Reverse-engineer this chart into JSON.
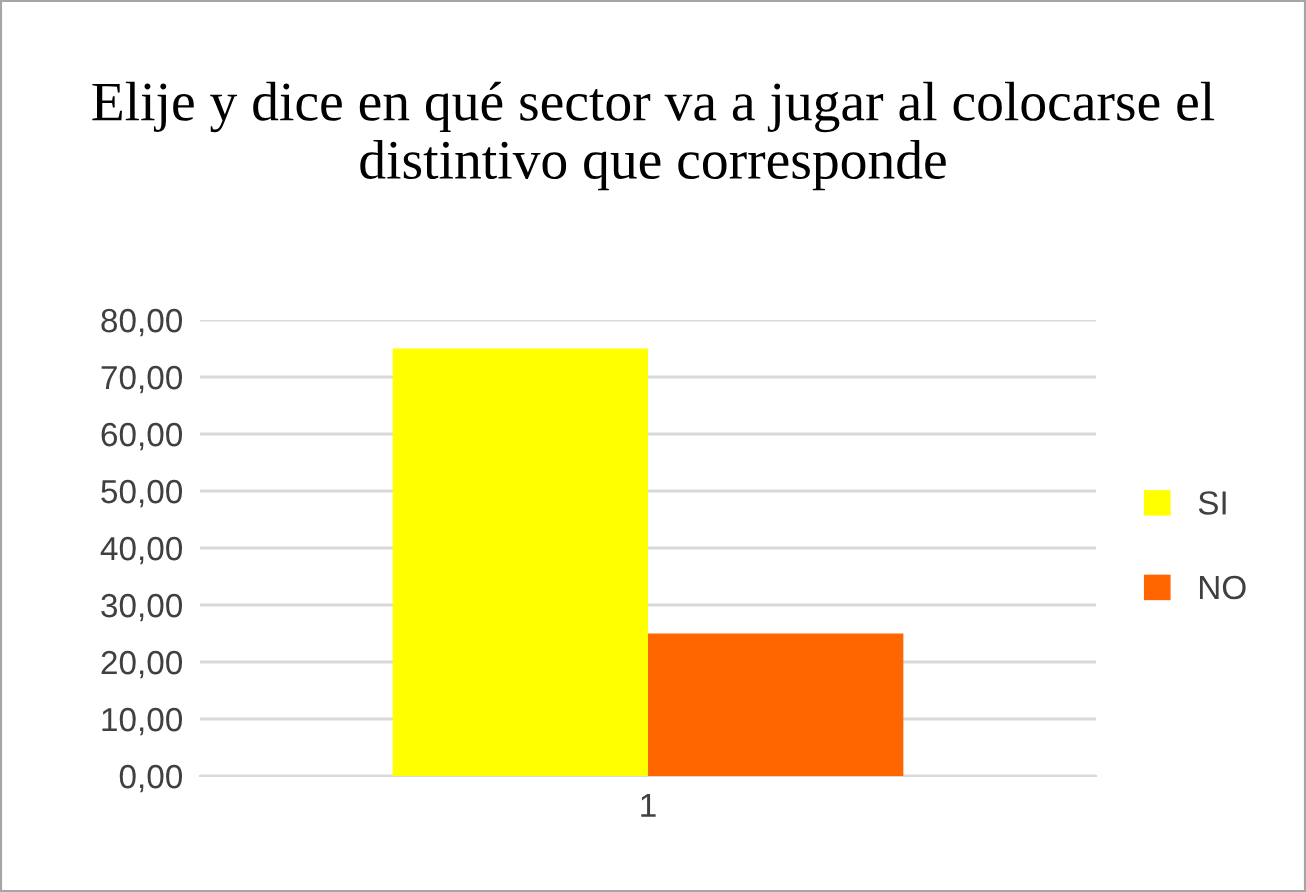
{
  "chart_data": {
    "type": "bar",
    "title": "Elije y dice en qué sector va a jugar al colocarse el distintivo que corresponde",
    "categories": [
      "1"
    ],
    "series": [
      {
        "name": "SI",
        "color": "#ffff00",
        "values": [
          75
        ]
      },
      {
        "name": "NO",
        "color": "#ff6600",
        "values": [
          25
        ]
      }
    ],
    "ylim": [
      0,
      80
    ],
    "yticks": [
      {
        "value": 0,
        "label": "0,00"
      },
      {
        "value": 10,
        "label": "10,00"
      },
      {
        "value": 20,
        "label": "20,00"
      },
      {
        "value": 30,
        "label": "30,00"
      },
      {
        "value": 40,
        "label": "40,00"
      },
      {
        "value": 50,
        "label": "50,00"
      },
      {
        "value": 60,
        "label": "60,00"
      },
      {
        "value": 70,
        "label": "70,00"
      },
      {
        "value": 80,
        "label": "80,00"
      }
    ],
    "grid": "y",
    "legend": "right"
  }
}
